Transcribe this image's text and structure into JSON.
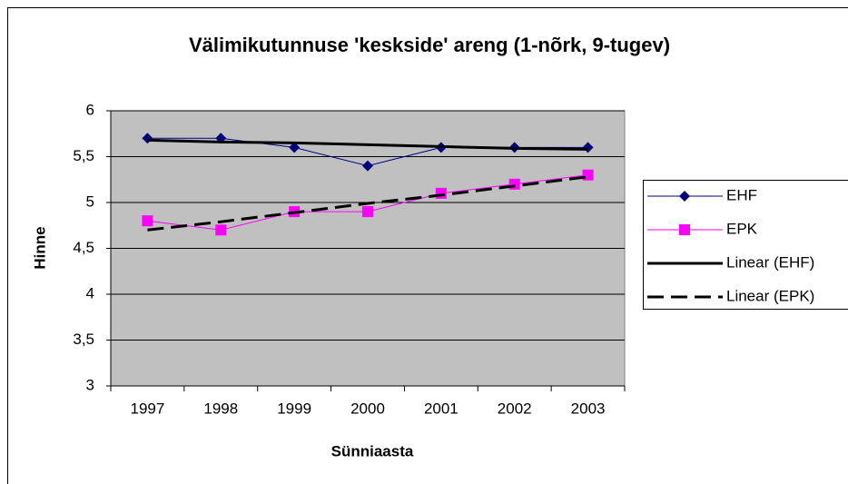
{
  "chart_data": {
    "type": "line",
    "title": "Välimikutunnuse 'keskside' areng (1-nõrk, 9-tugev)",
    "x_label": "Sünniaasta",
    "y_label": "Hinne",
    "categories": [
      "1997",
      "1998",
      "1999",
      "2000",
      "2001",
      "2002",
      "2003"
    ],
    "series": [
      {
        "name": "EHF",
        "color": "#000080",
        "marker": "diamond",
        "dash": false,
        "width": 1,
        "values": [
          5.7,
          5.7,
          5.6,
          5.4,
          5.6,
          5.6,
          5.6
        ]
      },
      {
        "name": "EPK",
        "color": "#ff00ff",
        "marker": "square",
        "dash": false,
        "width": 1,
        "values": [
          4.8,
          4.7,
          4.9,
          4.9,
          5.1,
          5.2,
          5.3
        ]
      },
      {
        "name": "Linear (EHF)",
        "color": "#000000",
        "marker": null,
        "dash": false,
        "width": 3,
        "values": [
          5.68,
          5.66,
          5.65,
          5.63,
          5.61,
          5.59,
          5.58
        ]
      },
      {
        "name": "Linear (EPK)",
        "color": "#000000",
        "marker": null,
        "dash": true,
        "width": 3,
        "values": [
          4.7,
          4.79,
          4.89,
          4.99,
          5.08,
          5.18,
          5.28
        ]
      }
    ],
    "ylim": [
      3,
      6
    ],
    "yticks": [
      3,
      {
        "value": 3.5,
        "label": "3,5"
      },
      4,
      {
        "value": 4.5,
        "label": "4,5"
      },
      5,
      {
        "value": 5.5,
        "label": "5,5"
      },
      6
    ],
    "grid": true,
    "plot_background": "#c0c0c0",
    "legend": "right"
  }
}
